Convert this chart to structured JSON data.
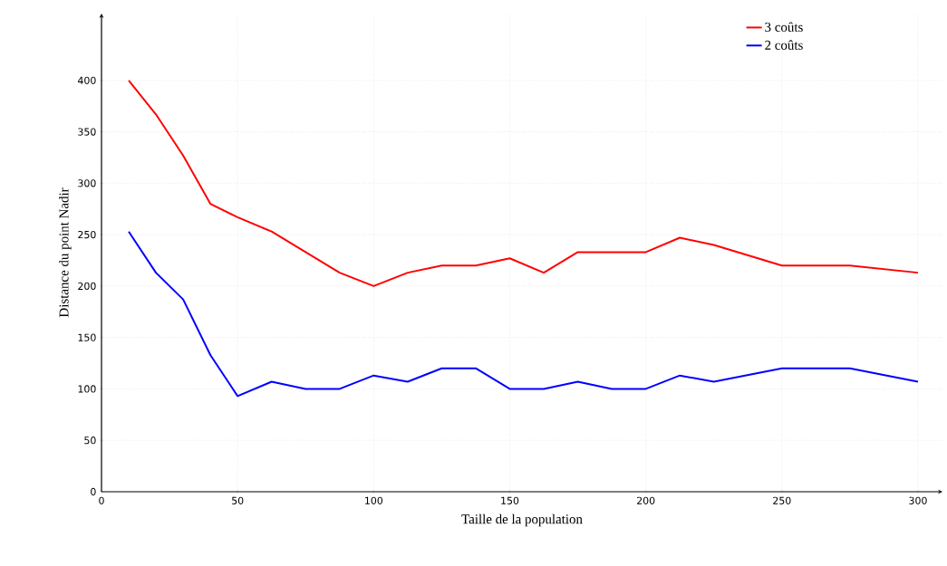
{
  "chart_data": {
    "type": "line",
    "xlabel": "Taille de la population",
    "ylabel": "Distance du point Nadir",
    "x": [
      10,
      20,
      30,
      40,
      50,
      62.5,
      75,
      87.5,
      100,
      112.5,
      125,
      137.5,
      150,
      162.5,
      175,
      187.5,
      200,
      212.5,
      225,
      250,
      275,
      300
    ],
    "series": [
      {
        "name": "3 coûts",
        "color": "#ff0000",
        "values": [
          400,
          367,
          327,
          280,
          267,
          253,
          233,
          213,
          200,
          213,
          220,
          220,
          227,
          213,
          233,
          233,
          233,
          247,
          240,
          220,
          220,
          213
        ]
      },
      {
        "name": "2 coûts",
        "color": "#0000ff",
        "values": [
          253,
          213,
          187,
          133,
          93,
          107,
          100,
          100,
          113,
          107,
          120,
          120,
          100,
          100,
          107,
          100,
          100,
          113,
          107,
          120,
          120,
          107
        ]
      }
    ],
    "xlim": [
      0,
      309
    ],
    "ylim": [
      0,
      465
    ],
    "xticks": [
      0,
      50,
      100,
      150,
      200,
      250,
      300
    ],
    "yticks": [
      0,
      50,
      100,
      150,
      200,
      250,
      300,
      350,
      400
    ],
    "grid": true,
    "legend": "top right",
    "marker": "none",
    "line_style": "solid"
  }
}
